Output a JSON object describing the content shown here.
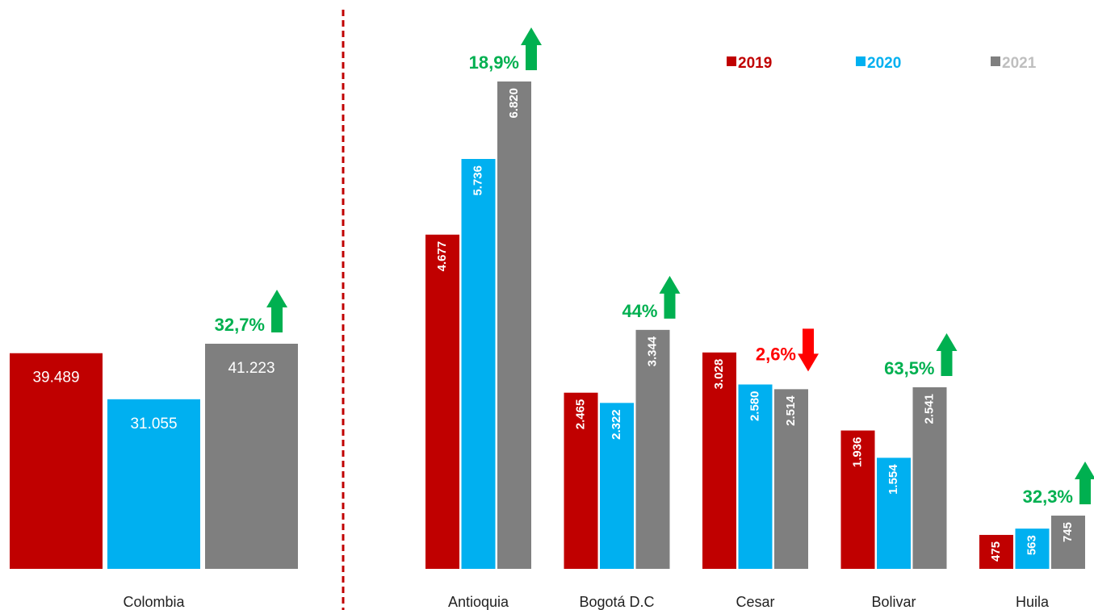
{
  "chart_data": [
    {
      "type": "bar",
      "categories": [
        "Colombia"
      ],
      "series": [
        {
          "color": "#c00000",
          "values": [
            39489
          ],
          "value_labels": [
            "39.489"
          ]
        },
        {
          "color": "#00b0f0",
          "values": [
            31055
          ],
          "value_labels": [
            "31.055"
          ]
        },
        {
          "color": "#7f7f7f",
          "values": [
            41223
          ],
          "value_labels": [
            "41.223"
          ]
        }
      ],
      "annotations": [
        {
          "text": "32,7%",
          "direction": "up",
          "color": "#00b050"
        }
      ]
    },
    {
      "type": "bar",
      "categories": [
        "Antioquia",
        "Bogotá D.C",
        "Cesar",
        "Bolivar",
        "Huila"
      ],
      "series": [
        {
          "name": "2019",
          "color": "#c00000",
          "values": [
            4677,
            2465,
            3028,
            1936,
            475
          ],
          "value_labels": [
            "4.677",
            "2.465",
            "3.028",
            "1.936",
            "475"
          ]
        },
        {
          "name": "2020",
          "color": "#00b0f0",
          "values": [
            5736,
            2322,
            2580,
            1554,
            563
          ],
          "value_labels": [
            "5.736",
            "2.322",
            "2.580",
            "1.554",
            "563"
          ]
        },
        {
          "name": "2021",
          "color": "#7f7f7f",
          "values": [
            6820,
            3344,
            2514,
            2541,
            745
          ],
          "value_labels": [
            "6.820",
            "3.344",
            "2.514",
            "2.541",
            "745"
          ]
        }
      ],
      "annotations": [
        {
          "text": "18,9%",
          "direction": "up",
          "color": "#00b050"
        },
        {
          "text": "44%",
          "direction": "up",
          "color": "#00b050"
        },
        {
          "text": "2,6%",
          "direction": "down",
          "color": "#ff0000"
        },
        {
          "text": "63,5%",
          "direction": "up",
          "color": "#00b050"
        },
        {
          "text": "32,3%",
          "direction": "up",
          "color": "#00b050"
        }
      ],
      "legend": "top-right"
    }
  ]
}
